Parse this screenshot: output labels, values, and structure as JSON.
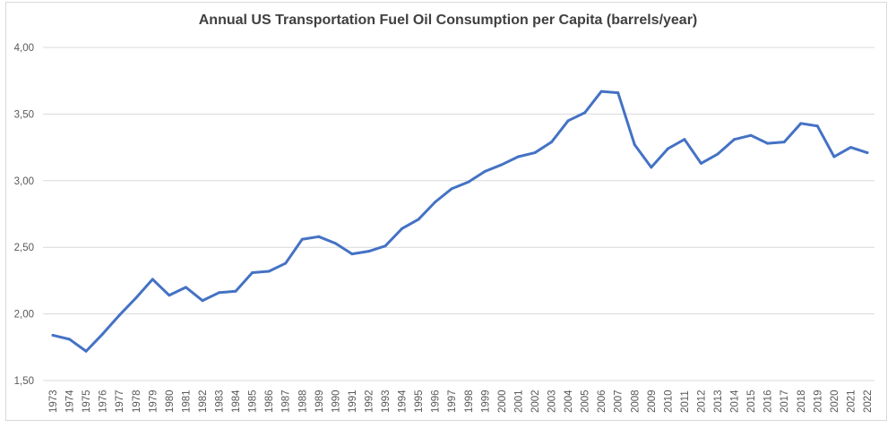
{
  "chart_data": {
    "type": "line",
    "title": "Annual US Transportation Fuel Oil Consumption per Capita (barrels/year)",
    "xlabel": "",
    "ylabel": "",
    "ylim": [
      1.5,
      4.0
    ],
    "yticks": [
      "1,50",
      "2,00",
      "2,50",
      "3,00",
      "3,50",
      "4,00"
    ],
    "grid": true,
    "legend": "none",
    "line_color": "#4472C4",
    "x": [
      "1973",
      "1974",
      "1975",
      "1976",
      "1977",
      "1978",
      "1979",
      "1980",
      "1981",
      "1982",
      "1983",
      "1984",
      "1985",
      "1986",
      "1987",
      "1988",
      "1989",
      "1990",
      "1991",
      "1992",
      "1993",
      "1994",
      "1995",
      "1996",
      "1997",
      "1998",
      "1999",
      "2000",
      "2001",
      "2002",
      "2003",
      "2004",
      "2005",
      "2006",
      "2007",
      "2008",
      "2009",
      "2010",
      "2011",
      "2012",
      "2013",
      "2014",
      "2015",
      "2016",
      "2017",
      "2018",
      "2019",
      "2020",
      "2021",
      "2022"
    ],
    "series": [
      {
        "values": [
          1.84,
          1.81,
          1.72,
          1.85,
          1.99,
          2.12,
          2.26,
          2.14,
          2.2,
          2.1,
          2.16,
          2.17,
          2.31,
          2.32,
          2.38,
          2.56,
          2.58,
          2.53,
          2.45,
          2.47,
          2.51,
          2.64,
          2.71,
          2.84,
          2.94,
          2.99,
          3.07,
          3.12,
          3.18,
          3.21,
          3.29,
          3.45,
          3.51,
          3.67,
          3.66,
          3.27,
          3.1,
          3.24,
          3.31,
          3.13,
          3.2,
          3.31,
          3.34,
          3.28,
          3.29,
          3.43,
          3.41,
          3.18,
          3.25,
          3.21
        ]
      }
    ]
  }
}
